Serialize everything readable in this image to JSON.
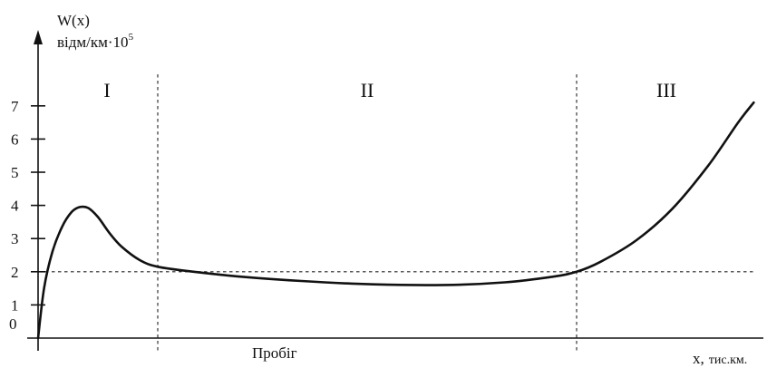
{
  "chart_data": {
    "type": "line",
    "ylabel_line1": "W(x)",
    "ylabel_line2_base": "відм/км·10",
    "ylabel_line2_exp": "5",
    "xlabel_var": "x,",
    "xlabel_unit": "тис.км.",
    "x_caption": "Пробіг",
    "origin_label": "0",
    "y_ticks": [
      "1",
      "2",
      "3",
      "4",
      "5",
      "6",
      "7"
    ],
    "ylim": [
      0,
      7.5
    ],
    "x_axis_numbered": false,
    "zones": [
      {
        "label": "I",
        "from": 0,
        "to": 1
      },
      {
        "label": "II",
        "from": 1,
        "to": 4.5
      },
      {
        "label": "III",
        "from": 4.5,
        "to": 6
      }
    ],
    "zone_boundaries": [
      1,
      4.5
    ],
    "reference_level": 2,
    "series": [
      {
        "points": [
          [
            0,
            0
          ],
          [
            0.05,
            1.5
          ],
          [
            0.12,
            2.6
          ],
          [
            0.2,
            3.35
          ],
          [
            0.28,
            3.8
          ],
          [
            0.35,
            3.95
          ],
          [
            0.42,
            3.92
          ],
          [
            0.5,
            3.65
          ],
          [
            0.6,
            3.15
          ],
          [
            0.7,
            2.75
          ],
          [
            0.85,
            2.35
          ],
          [
            1.0,
            2.15
          ],
          [
            1.3,
            2.0
          ],
          [
            1.7,
            1.85
          ],
          [
            2.2,
            1.72
          ],
          [
            2.8,
            1.62
          ],
          [
            3.4,
            1.6
          ],
          [
            3.9,
            1.68
          ],
          [
            4.3,
            1.85
          ],
          [
            4.5,
            2.0
          ],
          [
            4.7,
            2.3
          ],
          [
            5.0,
            2.95
          ],
          [
            5.3,
            3.9
          ],
          [
            5.6,
            5.2
          ],
          [
            5.85,
            6.5
          ],
          [
            5.98,
            7.1
          ]
        ]
      }
    ],
    "colors": {
      "ink": "#111111",
      "background": "#ffffff"
    }
  }
}
